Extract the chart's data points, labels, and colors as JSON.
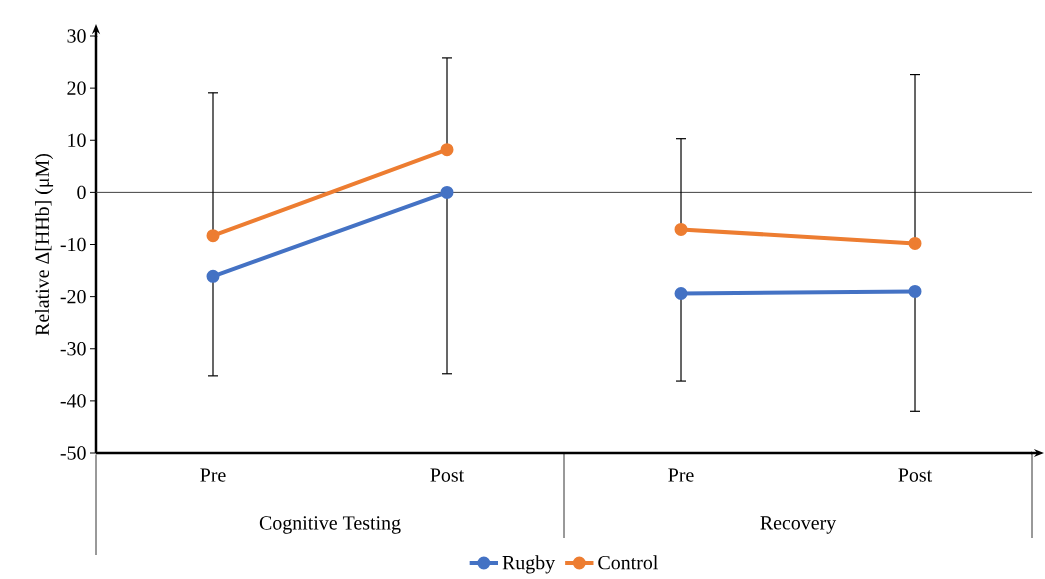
{
  "chart_data": {
    "type": "line",
    "ylabel": "Relative Δ[HHb] (μM)",
    "categories": [
      "Pre",
      "Post",
      "Pre",
      "Post"
    ],
    "annotations": [
      "Cognitive Testing",
      "Recovery"
    ],
    "series": [
      {
        "name": "Rugby",
        "color": "#4472c4",
        "values": [
          -16.1,
          0,
          -19.4,
          -19.0
        ],
        "errors": [
          [
            -35.2,
            -16.1
          ],
          [
            -34.8,
            0
          ],
          [
            -36.2,
            -19.4
          ],
          [
            -42.0,
            -19.0
          ]
        ]
      },
      {
        "name": "Control",
        "color": "#ed7d31",
        "values": [
          -8.3,
          8.2,
          -7.1,
          -9.8
        ],
        "errors": [
          [
            -8.3,
            19.1
          ],
          [
            8.2,
            25.8
          ],
          [
            -7.1,
            10.3
          ],
          [
            -9.8,
            22.6
          ]
        ]
      }
    ],
    "ylim": [
      -50,
      30
    ],
    "yticks": [
      -50,
      -40,
      -30,
      -20,
      -10,
      0,
      10,
      20,
      30
    ],
    "ref_lines": [
      {
        "axis": "y",
        "value": 0,
        "color": "#404040"
      }
    ],
    "grid": false,
    "legend": "bottom",
    "marker": "circle",
    "line_style": "solid"
  }
}
